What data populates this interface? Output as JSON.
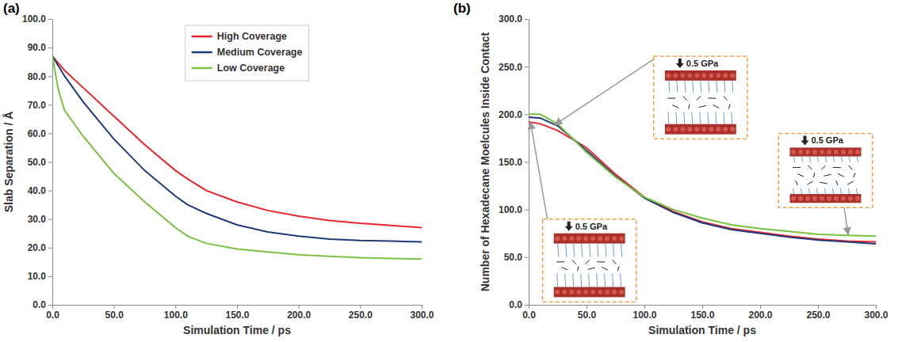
{
  "chart_data": [
    {
      "type": "line",
      "label": "(a)",
      "x_label": "Simulation Time / ps",
      "y_label": "Slab Separation / Å",
      "x": [
        0,
        5,
        10,
        25,
        50,
        75,
        100,
        110,
        125,
        150,
        175,
        200,
        225,
        250,
        275,
        300
      ],
      "xlim": [
        0,
        300
      ],
      "xticks": [
        {
          "value": 0,
          "label": "0.0"
        },
        {
          "value": 50,
          "label": "50.0"
        },
        {
          "value": 100,
          "label": "100.0"
        },
        {
          "value": 150,
          "label": "150.0"
        },
        {
          "value": 200,
          "label": "200.0"
        },
        {
          "value": 250,
          "label": "250.0"
        },
        {
          "value": 300,
          "label": "300.0"
        }
      ],
      "ylim": [
        0,
        100
      ],
      "yticks": [
        {
          "value": 0,
          "label": "0.0"
        },
        {
          "value": 10,
          "label": "10.0"
        },
        {
          "value": 20,
          "label": "20.0"
        },
        {
          "value": 30,
          "label": "30.0"
        },
        {
          "value": 40,
          "label": "40.0"
        },
        {
          "value": 50,
          "label": "50.0"
        },
        {
          "value": 60,
          "label": "60.0"
        },
        {
          "value": 70,
          "label": "70.0"
        },
        {
          "value": 80,
          "label": "80.0"
        },
        {
          "value": 90,
          "label": "90.0"
        },
        {
          "value": 100,
          "label": "100.0"
        }
      ],
      "grid": false,
      "legend": "top",
      "series": [
        {
          "name": "High Coverage",
          "color": "#e8262b",
          "values": [
            87,
            84.5,
            82,
            76,
            66,
            56,
            47,
            44,
            40,
            36,
            33,
            31,
            29.5,
            28.5,
            27.8,
            27
          ]
        },
        {
          "name": "Medium Coverage",
          "color": "#1f3a7a",
          "values": [
            87,
            83.5,
            80,
            71,
            58,
            47,
            38,
            35,
            32,
            28,
            25.5,
            24,
            23,
            22.5,
            22.3,
            22
          ]
        },
        {
          "name": "Low Coverage",
          "color": "#7ac143",
          "values": [
            87,
            75,
            68,
            59,
            46,
            36,
            27,
            24,
            21.5,
            19.5,
            18.5,
            17.5,
            17,
            16.5,
            16.2,
            16
          ]
        }
      ]
    },
    {
      "type": "line",
      "label": "(b)",
      "x_label": "Simulation Time / ps",
      "y_label": "Number of Hexadecane Moelcules Inside Contact",
      "x": [
        0,
        10,
        25,
        50,
        75,
        100,
        125,
        150,
        175,
        200,
        225,
        250,
        275,
        300
      ],
      "xlim": [
        0,
        300
      ],
      "xticks": [
        {
          "value": 0,
          "label": "0.0"
        },
        {
          "value": 50,
          "label": "50.0"
        },
        {
          "value": 100,
          "label": "100.0"
        },
        {
          "value": 150,
          "label": "150.0"
        },
        {
          "value": 200,
          "label": "200.0"
        },
        {
          "value": 250,
          "label": "250.0"
        },
        {
          "value": 300,
          "label": "300.0"
        }
      ],
      "ylim": [
        0,
        300
      ],
      "yticks": [
        {
          "value": 0,
          "label": "0.0"
        },
        {
          "value": 50,
          "label": "50.0"
        },
        {
          "value": 100,
          "label": "100.0"
        },
        {
          "value": 150,
          "label": "150.0"
        },
        {
          "value": 200,
          "label": "200.0"
        },
        {
          "value": 250,
          "label": "250.0"
        },
        {
          "value": 300,
          "label": "300.0"
        }
      ],
      "grid": false,
      "annotations": [
        "0.5 GPa",
        "0.5 GPa",
        "0.5 GPa"
      ],
      "series": [
        {
          "color": "#e8262b",
          "values": [
            192,
            190,
            183,
            165,
            137,
            113,
            98,
            87,
            80,
            76,
            72,
            69,
            67,
            66
          ]
        },
        {
          "color": "#1f3a7a",
          "values": [
            197,
            196,
            188,
            162,
            135,
            112,
            97,
            86,
            79,
            75,
            71,
            68,
            66,
            64
          ]
        },
        {
          "color": "#7ac143",
          "values": [
            200,
            200,
            190,
            160,
            134,
            113,
            100,
            91,
            84,
            80,
            77,
            74,
            73,
            72
          ]
        }
      ]
    }
  ]
}
